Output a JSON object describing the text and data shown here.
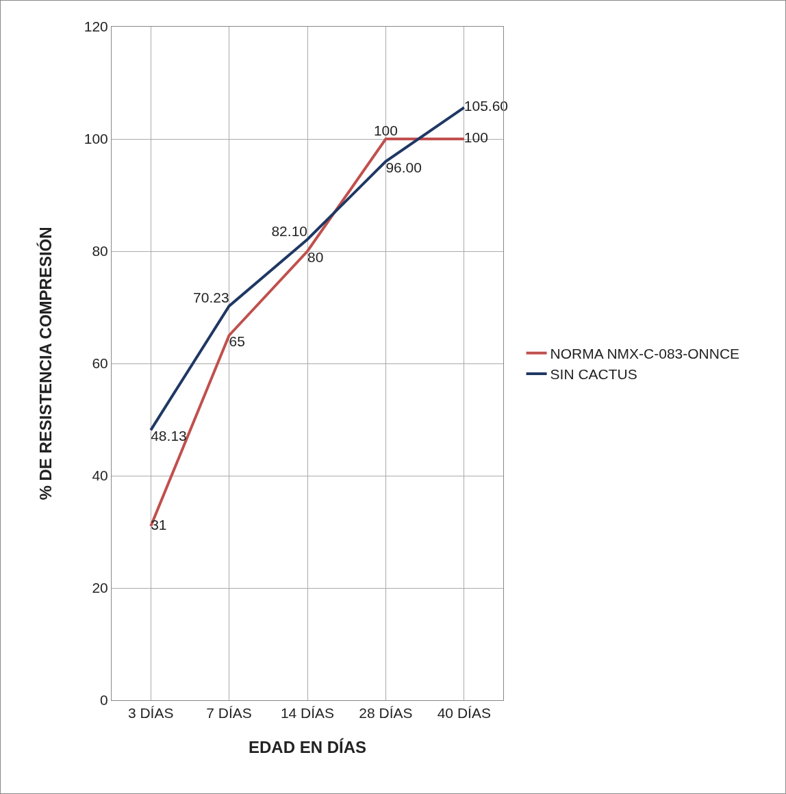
{
  "chart_data": {
    "type": "line",
    "xlabel": "EDAD EN DÍAS",
    "ylabel": "% DE RESISTENCIA COMPRESIÓN",
    "categories": [
      "3 DÍAS",
      "7 DÍAS",
      "14 DÍAS",
      "28 DÍAS",
      "40 DÍAS"
    ],
    "series": [
      {
        "name": "NORMA NMX-C-083-ONNCE",
        "color": "#c0504d",
        "values": [
          31,
          65,
          80,
          100,
          100
        ],
        "value_labels": [
          "31",
          "65",
          "80",
          "100",
          "100"
        ]
      },
      {
        "name": "SIN CACTUS",
        "color": "#1f3864",
        "values": [
          48.13,
          70.23,
          82.1,
          96,
          105.6
        ],
        "value_labels": [
          "48.13",
          "70.23",
          "82.10",
          "96.00",
          "105.60"
        ]
      }
    ],
    "ylim": [
      0,
      120
    ],
    "yticks": [
      0,
      20,
      40,
      60,
      80,
      100,
      120
    ],
    "grid": true,
    "legend": "right",
    "marker": "none",
    "line_style": "solid"
  }
}
